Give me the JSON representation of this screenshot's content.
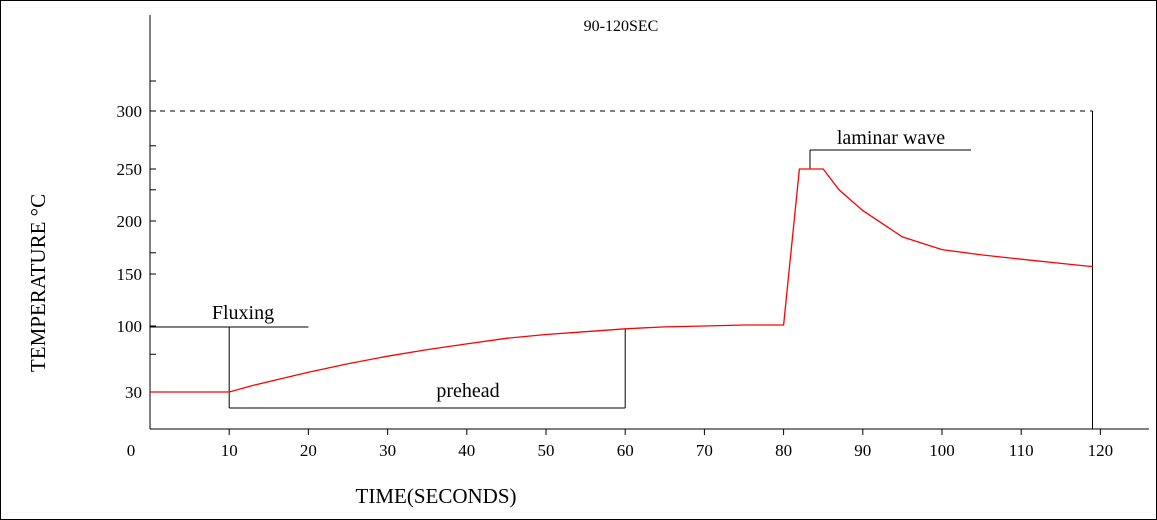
{
  "chart_data": {
    "type": "line",
    "title": "",
    "xlabel": "TIME(SECONDS)",
    "ylabel": "TEMPERATURE °C",
    "xlim": [
      0,
      120
    ],
    "ylim": [
      0,
      300
    ],
    "grid": false,
    "legend": "none",
    "x_ticks": [
      0,
      10,
      20,
      30,
      40,
      50,
      60,
      70,
      80,
      90,
      100,
      110,
      120
    ],
    "x_tick_labels": [
      "0",
      "10",
      "20",
      "30",
      "40",
      "50",
      "60",
      "70",
      "80",
      "90",
      "100",
      "110",
      "120"
    ],
    "y_ticks": [
      30,
      100,
      150,
      200,
      250,
      300
    ],
    "y_tick_labels": [
      "30",
      "100",
      "150",
      "200",
      "250",
      "300"
    ],
    "y_minor_ticks": [
      70,
      170,
      230,
      270,
      330
    ],
    "series": [
      {
        "color": "#ff0000",
        "x": [
          0,
          10,
          13,
          17,
          20,
          25,
          30,
          35,
          40,
          45,
          50,
          55,
          60,
          65,
          70,
          75,
          80,
          82,
          85,
          87,
          90,
          95,
          100,
          105,
          110,
          115,
          119
        ],
        "y": [
          30,
          30,
          37,
          45,
          51,
          60,
          68,
          75,
          81,
          87,
          91,
          94,
          97,
          99,
          100,
          101,
          101,
          250,
          250,
          230,
          210,
          185,
          173,
          168,
          164,
          160,
          157
        ]
      }
    ],
    "reference_lines": [
      {
        "type": "horizontal",
        "y": 300,
        "style": "dashed",
        "from_x": 0,
        "to_x": 119
      }
    ],
    "annotations": {
      "top_label": "90-120SEC",
      "fluxing": "Fluxing",
      "prehead": "prehead",
      "laminar_wave": "laminar wave"
    }
  }
}
